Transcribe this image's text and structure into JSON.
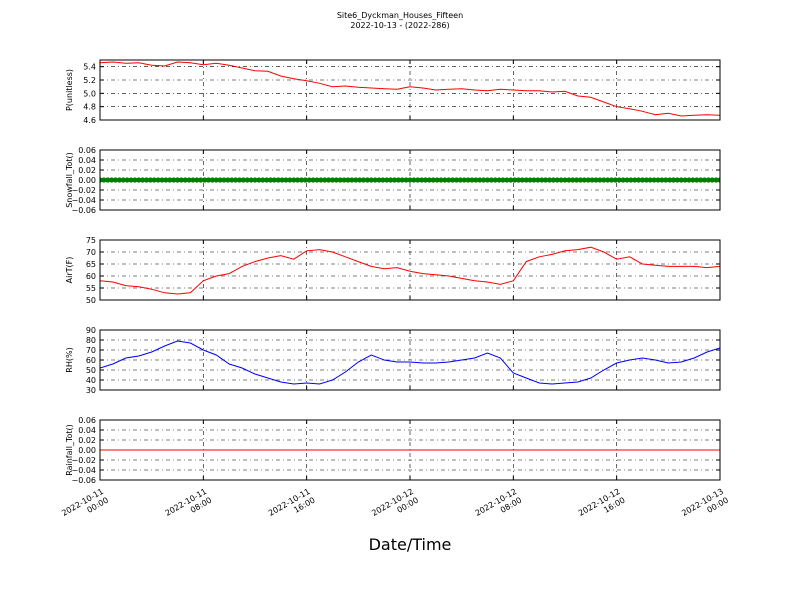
{
  "figure": {
    "title": "Site6_Dyckman_Houses_Fifteen",
    "subtitle": "2022-10-13 - (2022-286)",
    "xlabel": "Date/Time"
  },
  "chart_data": [
    {
      "type": "line",
      "ylabel": "P(unitless)",
      "ylim": [
        4.6,
        5.5
      ],
      "yticks": [
        "4.6",
        "4.8",
        "5.0",
        "5.2",
        "5.4"
      ],
      "ytick_values": [
        4.6,
        4.8,
        5.0,
        5.2,
        5.4
      ],
      "xlim": [
        0,
        48
      ],
      "grid": true,
      "series": [
        {
          "color": "#ff0000",
          "x": [
            0,
            1,
            2,
            3,
            4,
            5,
            6,
            7,
            8,
            9,
            10,
            11,
            12,
            13,
            14,
            15,
            16,
            17,
            18,
            19,
            20,
            21,
            22,
            23,
            24,
            25,
            26,
            27,
            28,
            29,
            30,
            31,
            32,
            33,
            34,
            35,
            36,
            37,
            38,
            39,
            40,
            41,
            42,
            43,
            44,
            45,
            46,
            47,
            48
          ],
          "y": [
            5.46,
            5.47,
            5.45,
            5.46,
            5.42,
            5.41,
            5.47,
            5.46,
            5.43,
            5.45,
            5.42,
            5.38,
            5.34,
            5.33,
            5.26,
            5.22,
            5.19,
            5.15,
            5.1,
            5.11,
            5.09,
            5.08,
            5.07,
            5.06,
            5.1,
            5.08,
            5.05,
            5.06,
            5.07,
            5.05,
            5.04,
            5.06,
            5.05,
            5.04,
            5.04,
            5.02,
            5.03,
            4.96,
            4.94,
            4.87,
            4.8,
            4.77,
            4.73,
            4.68,
            4.7,
            4.66,
            4.67,
            4.68,
            4.67
          ]
        }
      ]
    },
    {
      "type": "scatter",
      "ylabel": "Snowfall_Tot()",
      "ylim": [
        -0.06,
        0.06
      ],
      "yticks": [
        "−0.06",
        "−0.04",
        "−0.02",
        "0.00",
        "0.02",
        "0.04",
        "0.06"
      ],
      "ytick_values": [
        -0.06,
        -0.04,
        -0.02,
        0.0,
        0.02,
        0.04,
        0.06
      ],
      "xlim": [
        0,
        48
      ],
      "grid": true,
      "series": [
        {
          "color": "#007f00",
          "x": [
            0,
            48
          ],
          "y": [
            0.0,
            0.0
          ]
        }
      ]
    },
    {
      "type": "line",
      "ylabel": "AirT(F)",
      "ylim": [
        50,
        75
      ],
      "yticks": [
        "50",
        "55",
        "60",
        "65",
        "70",
        "75"
      ],
      "ytick_values": [
        50,
        55,
        60,
        65,
        70,
        75
      ],
      "xlim": [
        0,
        48
      ],
      "grid": true,
      "series": [
        {
          "color": "#ff0000",
          "x": [
            0,
            1,
            2,
            3,
            4,
            5,
            6,
            7,
            8,
            9,
            10,
            11,
            12,
            13,
            14,
            15,
            16,
            17,
            18,
            19,
            20,
            21,
            22,
            23,
            24,
            25,
            26,
            27,
            28,
            29,
            30,
            31,
            32,
            33,
            34,
            35,
            36,
            37,
            38,
            39,
            40,
            41,
            42,
            43,
            44,
            45,
            46,
            47,
            48
          ],
          "y": [
            58.0,
            57.5,
            56.0,
            55.5,
            54.5,
            53.0,
            52.5,
            53.0,
            58.0,
            60.0,
            61.0,
            64.0,
            66.0,
            67.5,
            68.5,
            67.0,
            70.5,
            71.0,
            70.0,
            68.0,
            66.0,
            64.0,
            63.0,
            63.5,
            62.0,
            61.0,
            60.5,
            60.0,
            59.0,
            58.0,
            57.5,
            56.5,
            58.0,
            66.0,
            68.0,
            69.0,
            70.5,
            71.0,
            72.0,
            70.0,
            67.0,
            68.0,
            65.0,
            64.5,
            64.0,
            64.0,
            64.0,
            63.5,
            64.0
          ]
        }
      ]
    },
    {
      "type": "line",
      "ylabel": "RH(%)",
      "ylim": [
        30,
        90
      ],
      "yticks": [
        "30",
        "40",
        "50",
        "60",
        "70",
        "80",
        "90"
      ],
      "ytick_values": [
        30,
        40,
        50,
        60,
        70,
        80,
        90
      ],
      "xlim": [
        0,
        48
      ],
      "grid": true,
      "series": [
        {
          "color": "#0000ff",
          "x": [
            0,
            1,
            2,
            3,
            4,
            5,
            6,
            7,
            8,
            9,
            10,
            11,
            12,
            13,
            14,
            15,
            16,
            17,
            18,
            19,
            20,
            21,
            22,
            23,
            24,
            25,
            26,
            27,
            28,
            29,
            30,
            31,
            32,
            33,
            34,
            35,
            36,
            37,
            38,
            39,
            40,
            41,
            42,
            43,
            44,
            45,
            46,
            47,
            48
          ],
          "y": [
            52,
            56,
            62,
            64,
            68,
            74,
            79,
            77,
            70,
            65,
            56,
            52,
            46,
            42,
            38,
            36,
            37,
            36,
            40,
            48,
            58,
            65,
            60,
            58,
            58,
            57,
            57,
            58,
            60,
            62,
            67,
            62,
            47,
            42,
            37,
            36,
            37,
            38,
            42,
            50,
            57,
            60,
            62,
            60,
            57,
            58,
            62,
            68,
            72
          ]
        }
      ]
    },
    {
      "type": "line",
      "ylabel": "Rainfall_Tot()",
      "ylim": [
        -0.06,
        0.06
      ],
      "yticks": [
        "−0.06",
        "−0.04",
        "−0.02",
        "0.00",
        "0.02",
        "0.04",
        "0.06"
      ],
      "ytick_values": [
        -0.06,
        -0.04,
        -0.02,
        0.0,
        0.02,
        0.04,
        0.06
      ],
      "xlim": [
        0,
        48
      ],
      "grid": true,
      "series": [
        {
          "color": "#ff0000",
          "x": [
            0,
            48
          ],
          "y": [
            0.0,
            0.0
          ]
        }
      ]
    }
  ],
  "x_axis": {
    "tick_values": [
      0,
      8,
      16,
      24,
      32,
      40,
      48
    ],
    "tick_labels": [
      [
        "2022-10-11",
        "00:00"
      ],
      [
        "2022-10-11",
        "08:00"
      ],
      [
        "2022-10-11",
        "16:00"
      ],
      [
        "2022-10-12",
        "00:00"
      ],
      [
        "2022-10-12",
        "08:00"
      ],
      [
        "2022-10-12",
        "16:00"
      ],
      [
        "2022-10-13",
        "00:00"
      ]
    ]
  }
}
